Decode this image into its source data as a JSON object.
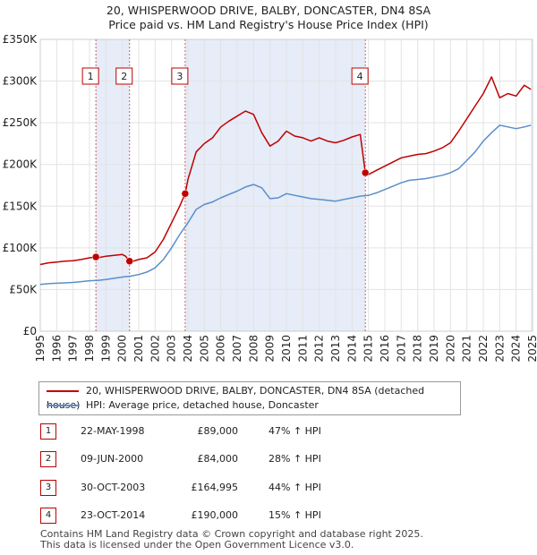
{
  "chart_data": {
    "type": "line",
    "title": "20, WHISPERWOOD DRIVE, BALBY, DONCASTER, DN4 8SA",
    "subtitle": "Price paid vs. HM Land Registry's House Price Index (HPI)",
    "xlabel": "",
    "ylabel": "",
    "xlim": [
      1995,
      2025
    ],
    "ylim": [
      0,
      350000
    ],
    "x_ticks": [
      "1995",
      "1996",
      "1997",
      "1998",
      "1999",
      "2000",
      "2001",
      "2002",
      "2003",
      "2004",
      "2005",
      "2006",
      "2007",
      "2008",
      "2009",
      "2010",
      "2011",
      "2012",
      "2013",
      "2014",
      "2015",
      "2016",
      "2017",
      "2018",
      "2019",
      "2020",
      "2021",
      "2022",
      "2023",
      "2024",
      "2025"
    ],
    "y_ticks": [
      {
        "value": 0,
        "label": "£0"
      },
      {
        "value": 50000,
        "label": "£50K"
      },
      {
        "value": 100000,
        "label": "£100K"
      },
      {
        "value": 150000,
        "label": "£150K"
      },
      {
        "value": 200000,
        "label": "£200K"
      },
      {
        "value": 250000,
        "label": "£250K"
      },
      {
        "value": 300000,
        "label": "£300K"
      },
      {
        "value": 350000,
        "label": "£350K"
      }
    ],
    "series": [
      {
        "name": "20, WHISPERWOOD DRIVE, BALBY, DONCASTER, DN4 8SA (detached house)",
        "color": "#c00000",
        "x": [
          1995.0,
          1995.5,
          1996.0,
          1996.5,
          1997.0,
          1997.5,
          1998.0,
          1998.39,
          1998.5,
          1999.0,
          1999.5,
          2000.0,
          2000.2,
          2000.44,
          2000.5,
          2001.0,
          2001.5,
          2002.0,
          2002.5,
          2003.0,
          2003.5,
          2003.83,
          2004.0,
          2004.5,
          2005.0,
          2005.5,
          2006.0,
          2006.5,
          2007.0,
          2007.5,
          2008.0,
          2008.5,
          2009.0,
          2009.5,
          2010.0,
          2010.5,
          2011.0,
          2011.5,
          2012.0,
          2012.5,
          2013.0,
          2013.5,
          2014.0,
          2014.5,
          2014.81,
          2015.0,
          2015.5,
          2016.0,
          2016.5,
          2017.0,
          2017.5,
          2018.0,
          2018.5,
          2019.0,
          2019.5,
          2020.0,
          2020.5,
          2021.0,
          2021.5,
          2022.0,
          2022.5,
          2023.0,
          2023.5,
          2024.0,
          2024.5,
          2024.9
        ],
        "y": [
          80000,
          82000,
          83000,
          84000,
          84500,
          86000,
          88000,
          89000,
          88000,
          90000,
          91000,
          92000,
          90000,
          84000,
          83000,
          86000,
          88000,
          95000,
          110000,
          130000,
          150000,
          164995,
          182000,
          215000,
          225000,
          232000,
          245000,
          252000,
          258000,
          264000,
          260000,
          238000,
          222000,
          228000,
          240000,
          234000,
          232000,
          228000,
          232000,
          228000,
          226000,
          229000,
          233000,
          236000,
          190000,
          188000,
          193000,
          198000,
          203000,
          208000,
          210000,
          212000,
          213000,
          216000,
          220000,
          226000,
          240000,
          255000,
          270000,
          285000,
          305000,
          280000,
          285000,
          282000,
          295000,
          290000
        ]
      },
      {
        "name": "HPI: Average price, detached house, Doncaster",
        "color": "#5b8ec9",
        "x": [
          1995.0,
          1995.5,
          1996.0,
          1996.5,
          1997.0,
          1997.5,
          1998.0,
          1998.5,
          1999.0,
          1999.5,
          2000.0,
          2000.5,
          2001.0,
          2001.5,
          2002.0,
          2002.5,
          2003.0,
          2003.5,
          2004.0,
          2004.5,
          2005.0,
          2005.5,
          2006.0,
          2006.5,
          2007.0,
          2007.5,
          2008.0,
          2008.5,
          2009.0,
          2009.5,
          2010.0,
          2010.5,
          2011.0,
          2011.5,
          2012.0,
          2012.5,
          2013.0,
          2013.5,
          2014.0,
          2014.5,
          2015.0,
          2015.5,
          2016.0,
          2016.5,
          2017.0,
          2017.5,
          2018.0,
          2018.5,
          2019.0,
          2019.5,
          2020.0,
          2020.5,
          2021.0,
          2021.5,
          2022.0,
          2022.5,
          2023.0,
          2023.5,
          2024.0,
          2024.5,
          2024.9
        ],
        "y": [
          56000,
          57000,
          57500,
          58000,
          58500,
          59500,
          60500,
          61000,
          62000,
          63500,
          65000,
          66000,
          68000,
          71000,
          76000,
          86000,
          100000,
          116000,
          130000,
          146000,
          152000,
          155000,
          160000,
          164000,
          168000,
          173000,
          176000,
          172000,
          159000,
          160000,
          165000,
          163000,
          161000,
          159000,
          158000,
          157000,
          156000,
          158000,
          160000,
          162000,
          163000,
          166000,
          170000,
          174000,
          178000,
          181000,
          182000,
          183000,
          185000,
          187000,
          190000,
          195000,
          205000,
          215000,
          228000,
          238000,
          247000,
          245000,
          243000,
          245000,
          247000
        ]
      }
    ],
    "sale_markers": [
      {
        "label": "1",
        "x": 1998.39,
        "y": 89000
      },
      {
        "label": "2",
        "x": 2000.44,
        "y": 84000
      },
      {
        "label": "3",
        "x": 2003.83,
        "y": 164995
      },
      {
        "label": "4",
        "x": 2014.81,
        "y": 190000
      }
    ],
    "shaded_ranges": [
      [
        1998.39,
        2000.44
      ],
      [
        2003.83,
        2014.81
      ],
      [
        2024.9,
        2025.0
      ]
    ]
  },
  "legend": {
    "property_label": "20, WHISPERWOOD DRIVE, BALBY, DONCASTER, DN4 8SA (detached house)",
    "hpi_label": "HPI: Average price, detached house, Doncaster"
  },
  "sales": [
    {
      "num": "1",
      "date": "22-MAY-1998",
      "price": "£89,000",
      "hpi": "47% ↑ HPI"
    },
    {
      "num": "2",
      "date": "09-JUN-2000",
      "price": "£84,000",
      "hpi": "28% ↑ HPI"
    },
    {
      "num": "3",
      "date": "30-OCT-2003",
      "price": "£164,995",
      "hpi": "44% ↑ HPI"
    },
    {
      "num": "4",
      "date": "23-OCT-2014",
      "price": "£190,000",
      "hpi": "15% ↑ HPI"
    }
  ],
  "footer": {
    "line1": "Contains HM Land Registry data © Crown copyright and database right 2025.",
    "line2": "This data is licensed under the Open Government Licence v3.0."
  }
}
